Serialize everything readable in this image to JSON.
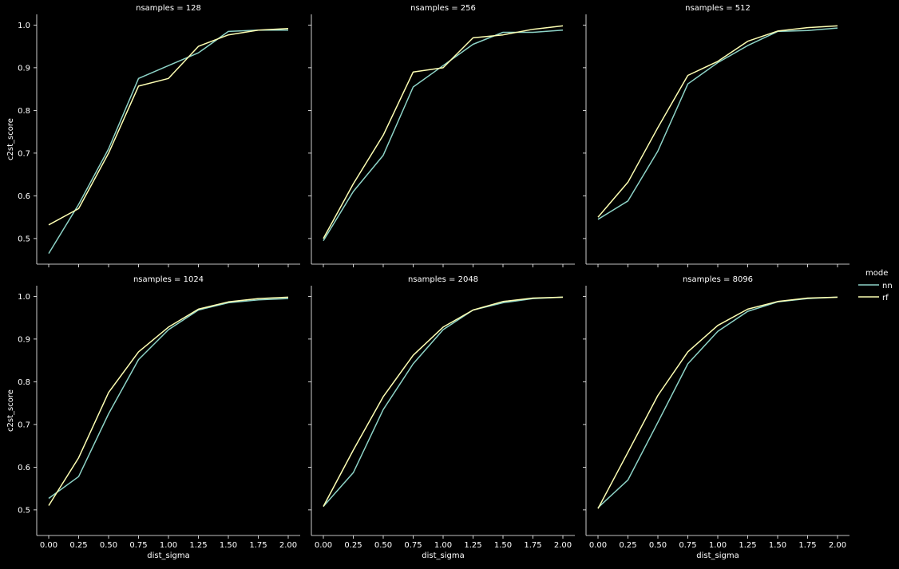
{
  "colors": {
    "background": "#000000",
    "foreground": "#ffffff",
    "nn": "#8dd3c7",
    "rf": "#feffb3"
  },
  "legend": {
    "title": "mode",
    "entries": [
      "nn",
      "rf"
    ],
    "placement": "right-center"
  },
  "chart_data": {
    "type": "line",
    "grid": false,
    "xlabel": "dist_sigma",
    "ylabel": "c2st_score",
    "x": [
      0.0,
      0.25,
      0.5,
      0.75,
      1.0,
      1.25,
      1.5,
      1.75,
      2.0
    ],
    "xticks": [
      "0.00",
      "0.25",
      "0.50",
      "0.75",
      "1.00",
      "1.25",
      "1.50",
      "1.75",
      "2.00"
    ],
    "yticks": [
      "0.5",
      "0.6",
      "0.7",
      "0.8",
      "0.9",
      "1.0"
    ],
    "xlim": [
      -0.1,
      2.1
    ],
    "ylim": [
      0.44,
      1.025
    ],
    "panels": [
      {
        "title": "nsamples = 128",
        "series": [
          {
            "name": "nn",
            "values": [
              0.465,
              0.58,
              0.71,
              0.875,
              0.905,
              0.935,
              0.985,
              0.988,
              0.988
            ]
          },
          {
            "name": "rf",
            "values": [
              0.532,
              0.57,
              0.7,
              0.857,
              0.875,
              0.95,
              0.977,
              0.988,
              0.992
            ]
          }
        ]
      },
      {
        "title": "nsamples = 256",
        "series": [
          {
            "name": "nn",
            "values": [
              0.495,
              0.61,
              0.695,
              0.855,
              0.905,
              0.955,
              0.983,
              0.983,
              0.988
            ]
          },
          {
            "name": "rf",
            "values": [
              0.5,
              0.628,
              0.742,
              0.89,
              0.9,
              0.97,
              0.977,
              0.99,
              0.998
            ]
          }
        ]
      },
      {
        "title": "nsamples = 512",
        "series": [
          {
            "name": "nn",
            "values": [
              0.545,
              0.588,
              0.705,
              0.862,
              0.912,
              0.952,
              0.985,
              0.987,
              0.993
            ]
          },
          {
            "name": "rf",
            "values": [
              0.55,
              0.632,
              0.76,
              0.882,
              0.915,
              0.962,
              0.986,
              0.994,
              0.998
            ]
          }
        ]
      },
      {
        "title": "nsamples = 1024",
        "series": [
          {
            "name": "nn",
            "values": [
              0.527,
              0.578,
              0.725,
              0.852,
              0.922,
              0.968,
              0.985,
              0.992,
              0.995
            ]
          },
          {
            "name": "rf",
            "values": [
              0.51,
              0.622,
              0.775,
              0.87,
              0.928,
              0.97,
              0.987,
              0.995,
              0.998
            ]
          }
        ]
      },
      {
        "title": "nsamples = 2048",
        "series": [
          {
            "name": "nn",
            "values": [
              0.508,
              0.587,
              0.735,
              0.842,
              0.922,
              0.968,
              0.985,
              0.995,
              0.998
            ]
          },
          {
            "name": "rf",
            "values": [
              0.508,
              0.64,
              0.765,
              0.862,
              0.928,
              0.968,
              0.988,
              0.996,
              0.998
            ]
          }
        ]
      },
      {
        "title": "nsamples = 8096",
        "series": [
          {
            "name": "nn",
            "values": [
              0.505,
              0.57,
              0.705,
              0.842,
              0.918,
              0.965,
              0.987,
              0.995,
              0.998
            ]
          },
          {
            "name": "rf",
            "values": [
              0.503,
              0.635,
              0.768,
              0.87,
              0.932,
              0.97,
              0.988,
              0.996,
              0.998
            ]
          }
        ]
      }
    ]
  }
}
